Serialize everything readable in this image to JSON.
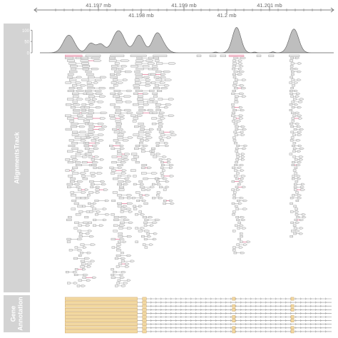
{
  "colors": {
    "panel": "#d3d3d3",
    "panel_text": "#ffffff",
    "axis": "#808080",
    "coverage_fill": "#bebebe",
    "coverage_stroke": "#5a5a5a",
    "read_fill": "#ececec",
    "read_stroke": "#8c8c8c",
    "mismatch": "#e889a5",
    "exon_fill": "#f2d8a0",
    "exon_stroke": "#c9a060",
    "intron": "#8a8a8a"
  },
  "genome_axis": {
    "range_mb": [
      41.1955,
      41.2025
    ],
    "upper_ticks": [
      {
        "pos": 41.197,
        "label": "41.197 mb"
      },
      {
        "pos": 41.199,
        "label": "41.199 mb"
      },
      {
        "pos": 41.201,
        "label": "41.201 mb"
      }
    ],
    "lower_ticks": [
      {
        "pos": 41.198,
        "label": "41.198 mb"
      },
      {
        "pos": 41.2,
        "label": "41.2 mb"
      }
    ]
  },
  "tracks": [
    {
      "key": "alignments",
      "label": "AlignmentsTrack"
    },
    {
      "key": "genes",
      "label": "Gene\nAnnotation"
    }
  ],
  "chart_data": {
    "type": "area",
    "coverage": {
      "yticks": [
        0,
        50,
        100
      ],
      "ylim": [
        0,
        120
      ],
      "peaks": [
        {
          "center": 41.19631,
          "height": 78,
          "width": 0.00013
        },
        {
          "center": 41.19682,
          "height": 42,
          "width": 9e-05
        },
        {
          "center": 41.19705,
          "height": 38,
          "width": 9e-05
        },
        {
          "center": 41.19747,
          "height": 98,
          "width": 0.00014
        },
        {
          "center": 41.19795,
          "height": 78,
          "width": 0.00011
        },
        {
          "center": 41.19837,
          "height": 85,
          "width": 0.00011
        },
        {
          "center": 41.19855,
          "height": 18,
          "width": 0.0001
        },
        {
          "center": 41.19974,
          "height": 3,
          "width": 4e-05
        },
        {
          "center": 41.20023,
          "height": 112,
          "width": 0.0001
        },
        {
          "center": 41.20065,
          "height": 3,
          "width": 4e-05
        },
        {
          "center": 41.20108,
          "height": 4,
          "width": 4e-05
        },
        {
          "center": 41.20157,
          "height": 105,
          "width": 0.00011
        }
      ]
    },
    "read_columns": [
      {
        "start": 41.19622,
        "end": 41.19681,
        "rows": 84
      },
      {
        "start": 41.19658,
        "end": 41.19715,
        "rows": 62
      },
      {
        "start": 41.19725,
        "end": 41.19778,
        "rows": 95
      },
      {
        "start": 41.19775,
        "end": 41.1983,
        "rows": 70
      },
      {
        "start": 41.19822,
        "end": 41.1987,
        "rows": 54
      },
      {
        "start": 41.2001,
        "end": 41.20041,
        "rows": 72
      },
      {
        "start": 41.20146,
        "end": 41.20173,
        "rows": 66
      }
    ],
    "gene_rows": 10,
    "gene_exons": [
      {
        "start": 41.19622,
        "end": 41.19791
      },
      {
        "start": 41.19803,
        "end": 41.19812
      },
      {
        "start": 41.20013,
        "end": 41.2002
      },
      {
        "start": 41.2015,
        "end": 41.20157
      }
    ],
    "gene_end": 41.20245
  }
}
